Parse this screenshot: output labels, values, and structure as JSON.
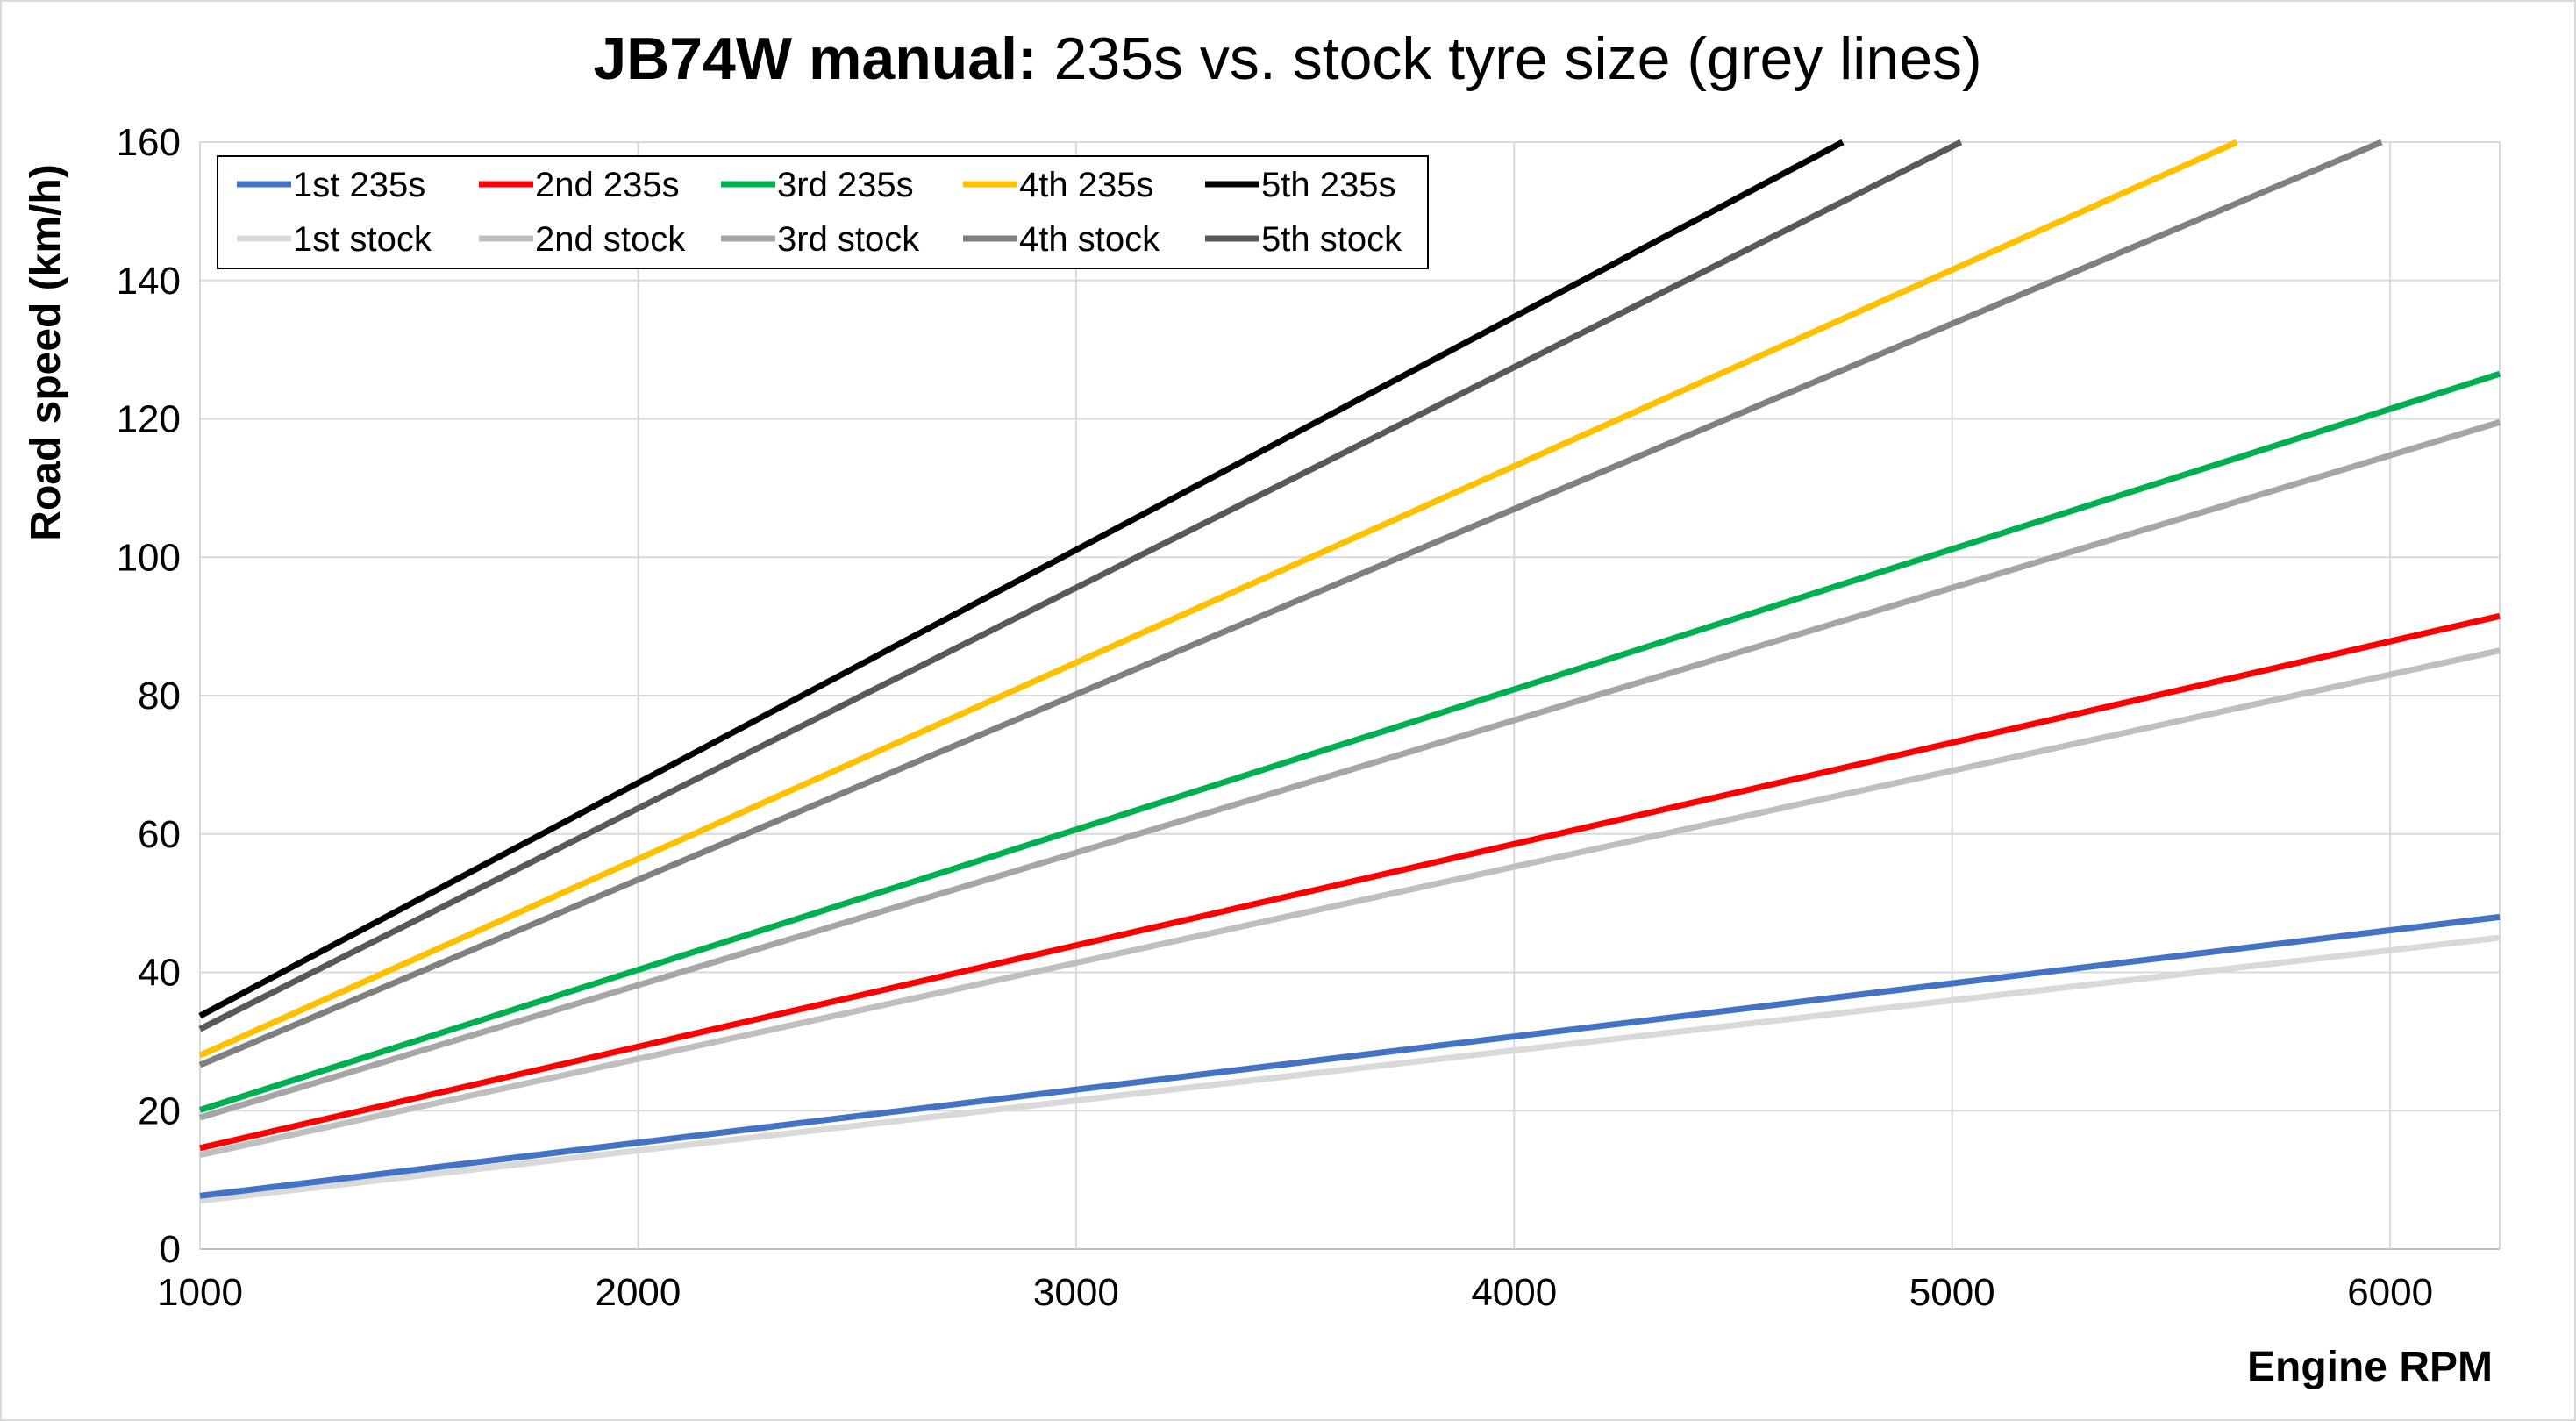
{
  "chart_data": {
    "type": "line",
    "title": {
      "bold": "JB74W manual:",
      "rest": " 235s vs. stock tyre size (grey lines)"
    },
    "xlabel": "Engine RPM",
    "ylabel": "Road speed (km/h)",
    "xlim": [
      1000,
      6250
    ],
    "ylim": [
      0,
      160
    ],
    "x_ticks": [
      1000,
      2000,
      3000,
      4000,
      5000,
      6000
    ],
    "y_ticks": [
      0,
      20,
      40,
      60,
      80,
      100,
      120,
      140,
      160
    ],
    "grid": true,
    "legend_position": "top-left",
    "series": [
      {
        "name": "1st 235s",
        "color": "#4472C4",
        "x": [
          1000,
          6250
        ],
        "y": [
          7.7,
          48.0
        ]
      },
      {
        "name": "2nd 235s",
        "color": "#FF0000",
        "x": [
          1000,
          6250
        ],
        "y": [
          14.6,
          91.5
        ]
      },
      {
        "name": "3rd 235s",
        "color": "#00B050",
        "x": [
          1000,
          6250
        ],
        "y": [
          20.1,
          126.5
        ]
      },
      {
        "name": "4th 235s",
        "color": "#FFC000",
        "x": [
          1000,
          5650
        ],
        "y": [
          28.0,
          160.0
        ]
      },
      {
        "name": "5th 235s",
        "color": "#000000",
        "x": [
          1000,
          4750
        ],
        "y": [
          33.7,
          160.0
        ]
      },
      {
        "name": "1st stock",
        "color": "#D9D9D9",
        "x": [
          1000,
          6250
        ],
        "y": [
          7.0,
          45.0
        ]
      },
      {
        "name": "2nd stock",
        "color": "#BFBFBF",
        "x": [
          1000,
          6250
        ],
        "y": [
          13.6,
          86.5
        ]
      },
      {
        "name": "3rd stock",
        "color": "#A6A6A6",
        "x": [
          1000,
          6250
        ],
        "y": [
          19.0,
          119.5
        ]
      },
      {
        "name": "4th stock",
        "color": "#808080",
        "x": [
          1000,
          5980
        ],
        "y": [
          26.6,
          160.0
        ]
      },
      {
        "name": "5th stock",
        "color": "#595959",
        "x": [
          1000,
          5020
        ],
        "y": [
          31.8,
          160.0
        ]
      }
    ]
  }
}
